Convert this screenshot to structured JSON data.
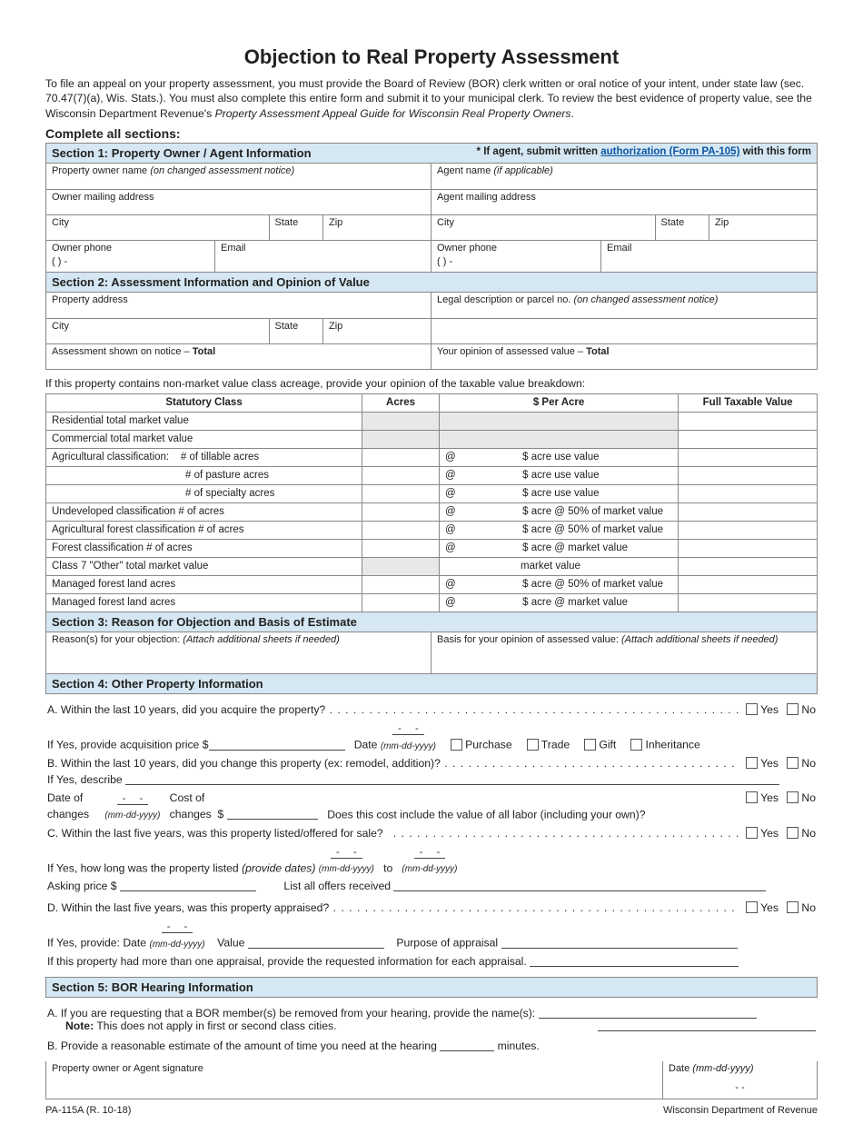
{
  "title": "Objection to Real Property Assessment",
  "intro": "To file an appeal on your property assessment, you must provide the Board of Review (BOR) clerk written or oral notice of your intent, under state law (sec. 70.47(7)(a), Wis. Stats.). You must also complete this entire form and submit it to your municipal clerk. To review the best evidence of property value, see the Wisconsin Department Revenue's ",
  "intro_guide": "Property Assessment Appeal Guide for Wisconsin Real Property Owners",
  "complete": "Complete all sections:",
  "s1": {
    "head": "Section 1:   Property Owner / Agent Information",
    "right_pre": "* If agent, submit written ",
    "right_link": "authorization (Form PA-105)",
    "right_post": " with this form",
    "owner_name": "Property owner name ",
    "owner_name_note": "(on changed assessment notice)",
    "agent_name": "Agent name ",
    "agent_name_note": "(if applicable)",
    "owner_addr": "Owner mailing address",
    "agent_addr": "Agent mailing address",
    "city": "City",
    "state": "State",
    "zip": "Zip",
    "owner_phone": "Owner phone",
    "email": "Email",
    "phone_fmt": "(          )            -"
  },
  "s2": {
    "head": "Section 2:   Assessment Information and Opinion of Value",
    "prop_addr": "Property address",
    "legal": "Legal description or parcel no.  ",
    "legal_note": "(on changed assessment notice)",
    "assess_total_pre": "Assessment shown on notice – ",
    "assess_total_bold": "Total",
    "opinion_total_pre": "Your opinion of assessed value – ",
    "opinion_total_bold": "Total",
    "city": "City",
    "state": "State",
    "zip": "Zip"
  },
  "table_note": "If this property contains non-market value class acreage, provide your opinion of the taxable value breakdown:",
  "th": {
    "c1": "Statutory Class",
    "c2": "Acres",
    "c3": "$ Per Acre",
    "c4": "Full Taxable Value"
  },
  "rows": [
    {
      "c1": "Residential total market value",
      "c3": "",
      "gray": true
    },
    {
      "c1": "Commercial total market value",
      "c3": "",
      "gray": true
    },
    {
      "c1": "Agricultural classification:    # of tillable acres",
      "c3": "@                       $ acre use value"
    },
    {
      "c1": "                                              # of pasture acres",
      "c3": "@                       $ acre use value"
    },
    {
      "c1": "                                              # of specialty acres",
      "c3": "@                       $ acre use value"
    },
    {
      "c1": "Undeveloped classification # of acres",
      "c3": "@                       $ acre @ 50% of market value"
    },
    {
      "c1": "Agricultural forest classification # of acres",
      "c3": "@                       $ acre @ 50% of market value"
    },
    {
      "c1": "Forest classification # of acres",
      "c3": "@                       $ acre @ market value"
    },
    {
      "c1": "Class 7 \"Other\" total market value",
      "c3": "                          market value",
      "grayAcres": true
    },
    {
      "c1": "Managed forest land acres",
      "c3": "@                       $ acre @ 50% of market value"
    },
    {
      "c1": "Managed forest land acres",
      "c3": "@                       $ acre @ market value"
    }
  ],
  "s3": {
    "head": "Section 3:   Reason for Objection and Basis of Estimate",
    "reason": "Reason(s) for your objection:  ",
    "reason_note": "(Attach additional sheets if needed)",
    "basis": "Basis for your opinion of assessed value:  ",
    "basis_note": "(Attach additional sheets if needed)"
  },
  "s4": {
    "head": "Section 4:   Other Property Information",
    "A": "A.   Within the last 10 years, did you acquire the property?",
    "A2a": "If Yes, provide acquisition price  $",
    "A2b": "Date",
    "purchase": "Purchase",
    "trade": "Trade",
    "gift": "Gift",
    "inheritance": "Inheritance",
    "B": "B.   Within the last 10 years, did you change this property (ex: remodel, addition)?",
    "B2": "If Yes, describe",
    "B3a": "Date of changes",
    "B3b": "Cost of changes  $",
    "B3c": "Does this cost include the value of all labor (including your own)?",
    "C": "C.   Within the last five years, was this property listed/offered for sale?",
    "C2a": "If Yes, how long was the property listed ",
    "C2a_note": "(provide dates)",
    "to": "to",
    "C3a": "Asking price $",
    "C3b": "List all offers received",
    "D": "D.   Within the last five years, was this property appraised?",
    "D2a": "If Yes, provide:   Date",
    "D2b": "Value",
    "D2c": "Purpose of appraisal",
    "D3": "If this property had more than one appraisal, provide the requested information for each appraisal.",
    "yes": "Yes",
    "no": "No",
    "mmddyyyy": "(mm-dd-yyyy)"
  },
  "s5": {
    "head": "Section 5:   BOR Hearing Information",
    "A": "A.   If you are requesting that a BOR member(s) be removed from your hearing, provide the name(s):",
    "A_note_bold": "Note:",
    "A_note": "  This does not apply in first or second class cities.",
    "B_pre": "B.   Provide a reasonable estimate of the amount of time you need at the hearing",
    "B_post": "minutes.",
    "sig": "Property owner or Agent signature",
    "date": "Date ",
    "date_note": "(mm-dd-yyyy)",
    "date_dash": "-              -"
  },
  "footer": {
    "left": "PA-115A (R. 10-18)",
    "right": "Wisconsin Department of Revenue"
  }
}
